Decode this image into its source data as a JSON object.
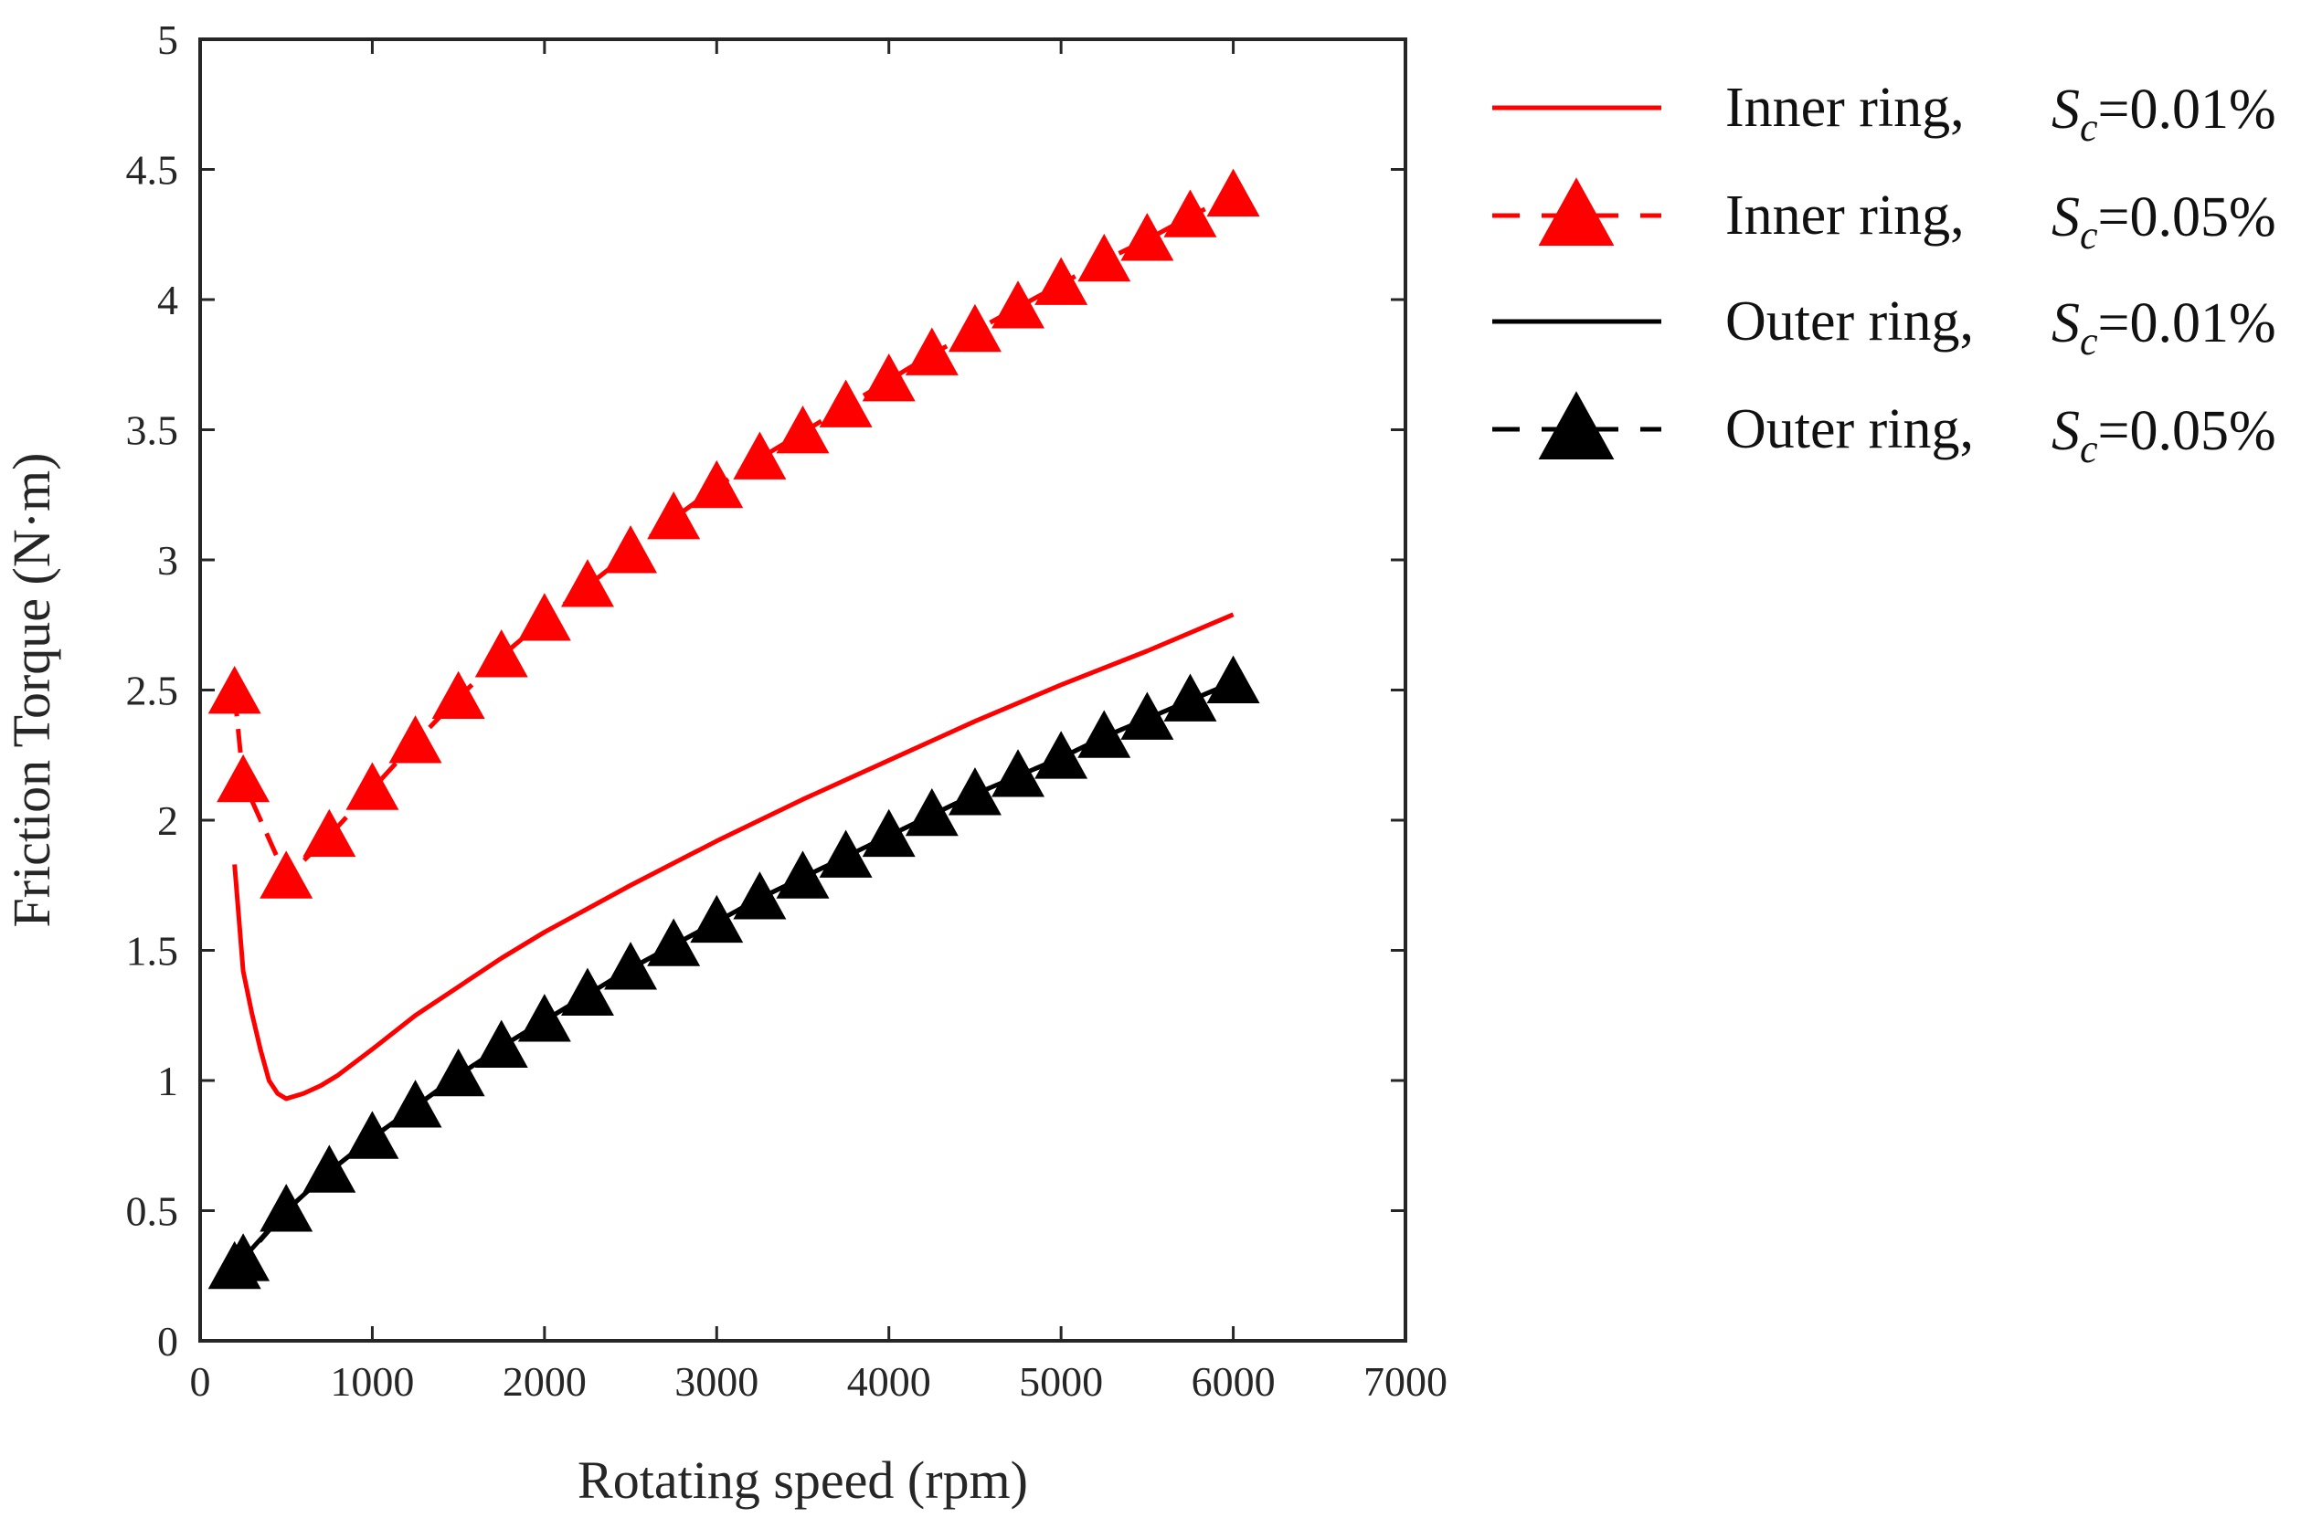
{
  "chart_data": {
    "type": "line",
    "title": "",
    "xlabel": "Rotating speed (rpm)",
    "ylabel": "Friction Torque (N·m)",
    "xlim": [
      0,
      7000
    ],
    "ylim": [
      0,
      5
    ],
    "xticks": [
      0,
      1000,
      2000,
      3000,
      4000,
      5000,
      6000,
      7000
    ],
    "xtick_labels": [
      "0",
      "1000",
      "2000",
      "3000",
      "4000",
      "5000",
      "6000",
      "7000"
    ],
    "yticks": [
      0,
      0.5,
      1,
      1.5,
      2,
      2.5,
      3,
      3.5,
      4,
      4.5,
      5
    ],
    "ytick_labels": [
      "0",
      "0.5",
      "1",
      "1.5",
      "2",
      "2.5",
      "3",
      "3.5",
      "4",
      "4.5",
      "5"
    ],
    "grid": false,
    "legend_position": "outside-right",
    "series": [
      {
        "name": "Inner ring, Sc=0.01%",
        "legend_label": "Inner ring,",
        "legend_sc": "=0.01%",
        "color": "#ff0000",
        "line": "solid",
        "marker": "none",
        "x": [
          200,
          250,
          300,
          350,
          400,
          450,
          500,
          600,
          700,
          800,
          1000,
          1250,
          1500,
          1750,
          2000,
          2500,
          3000,
          3500,
          4000,
          4500,
          5000,
          5500,
          6000
        ],
        "y": [
          1.83,
          1.42,
          1.26,
          1.12,
          1.0,
          0.95,
          0.93,
          0.95,
          0.98,
          1.02,
          1.12,
          1.25,
          1.36,
          1.47,
          1.57,
          1.75,
          1.92,
          2.08,
          2.23,
          2.38,
          2.52,
          2.65,
          2.79
        ]
      },
      {
        "name": "Inner ring, Sc=0.05%",
        "legend_label": "Inner ring,",
        "legend_sc": "=0.05%",
        "color": "#ff0000",
        "line": "dashed",
        "marker": "triangle",
        "x": [
          200,
          250,
          500,
          750,
          1000,
          1250,
          1500,
          1750,
          2000,
          2250,
          2500,
          2750,
          3000,
          3250,
          3500,
          3750,
          4000,
          4250,
          4500,
          4750,
          5000,
          5250,
          5500,
          5750,
          6000
        ],
        "y": [
          2.49,
          2.15,
          1.78,
          1.94,
          2.12,
          2.3,
          2.47,
          2.63,
          2.77,
          2.9,
          3.03,
          3.16,
          3.28,
          3.39,
          3.49,
          3.59,
          3.69,
          3.79,
          3.88,
          3.97,
          4.06,
          4.15,
          4.23,
          4.32,
          4.4
        ]
      },
      {
        "name": "Outer ring, Sc=0.01%",
        "legend_label": "Outer ring,",
        "legend_sc": "=0.01%",
        "color": "#000000",
        "line": "solid",
        "marker": "none",
        "x": [
          200,
          500,
          750,
          1000,
          1250,
          1500,
          1750,
          2000,
          2250,
          2500,
          2750,
          3000,
          3250,
          3500,
          3750,
          4000,
          4250,
          4500,
          4750,
          5000,
          5250,
          5500,
          5750,
          6000
        ],
        "y": [
          0.28,
          0.5,
          0.65,
          0.78,
          0.9,
          1.02,
          1.13,
          1.23,
          1.33,
          1.43,
          1.52,
          1.61,
          1.7,
          1.78,
          1.86,
          1.94,
          2.02,
          2.1,
          2.17,
          2.24,
          2.32,
          2.39,
          2.46,
          2.53
        ]
      },
      {
        "name": "Outer ring, Sc=0.05%",
        "legend_label": "Outer ring,",
        "legend_sc": "=0.05%",
        "color": "#000000",
        "line": "dashed",
        "marker": "triangle",
        "x": [
          200,
          250,
          500,
          750,
          1000,
          1250,
          1500,
          1750,
          2000,
          2250,
          2500,
          2750,
          3000,
          3250,
          3500,
          3750,
          4000,
          4250,
          4500,
          4750,
          5000,
          5250,
          5500,
          5750,
          6000
        ],
        "y": [
          0.28,
          0.31,
          0.5,
          0.65,
          0.78,
          0.9,
          1.02,
          1.13,
          1.23,
          1.33,
          1.43,
          1.52,
          1.61,
          1.7,
          1.78,
          1.86,
          1.94,
          2.02,
          2.1,
          2.17,
          2.24,
          2.32,
          2.39,
          2.46,
          2.53
        ]
      }
    ],
    "legend_symbol": "S",
    "legend_subscript": "c"
  }
}
